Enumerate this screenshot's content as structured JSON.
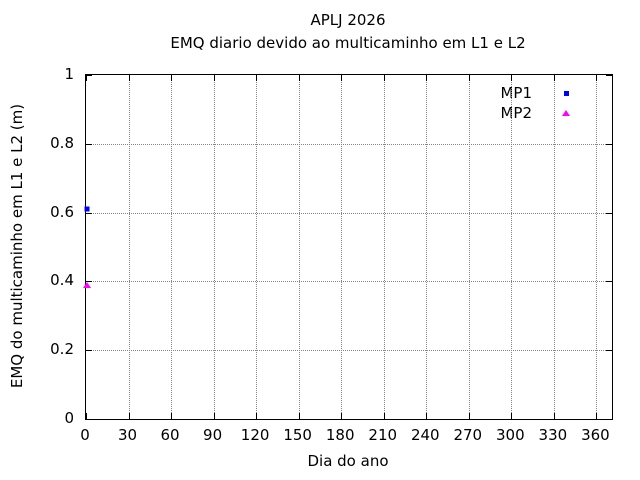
{
  "page": {
    "background": "#ffffff"
  },
  "chart_data": {
    "type": "scatter",
    "title": "APLJ 2026",
    "subtitle": "EMQ diario devido ao multicaminho em L1 e L2",
    "xlabel": "Dia do ano",
    "ylabel": "EMQ do multicaminho em L1 e L2 (m)",
    "xlim": [
      0,
      371
    ],
    "ylim": [
      0,
      1
    ],
    "x_ticks": [
      0,
      30,
      60,
      90,
      120,
      150,
      180,
      210,
      240,
      270,
      300,
      330,
      360
    ],
    "x_tick_labels": [
      "0",
      "30",
      "60",
      "90",
      "120",
      "150",
      "180",
      "210",
      "240",
      "270",
      "300",
      "330",
      "360"
    ],
    "y_ticks": [
      0,
      0.2,
      0.4,
      0.6,
      0.8,
      1
    ],
    "y_tick_labels": [
      "0",
      "0.2",
      "0.4",
      "0.6",
      "0.8",
      "1"
    ],
    "grid": true,
    "grid_style": "dotted gray",
    "legend_position": "inside top-right",
    "series": [
      {
        "name": "MP1",
        "color": "#0000ff",
        "marker": "square",
        "points": [
          {
            "x": 1,
            "y": 0.61
          }
        ]
      },
      {
        "name": "MP2",
        "color": "#ff00ff",
        "marker": "triangle",
        "points": [
          {
            "x": 1,
            "y": 0.39
          }
        ]
      }
    ]
  }
}
